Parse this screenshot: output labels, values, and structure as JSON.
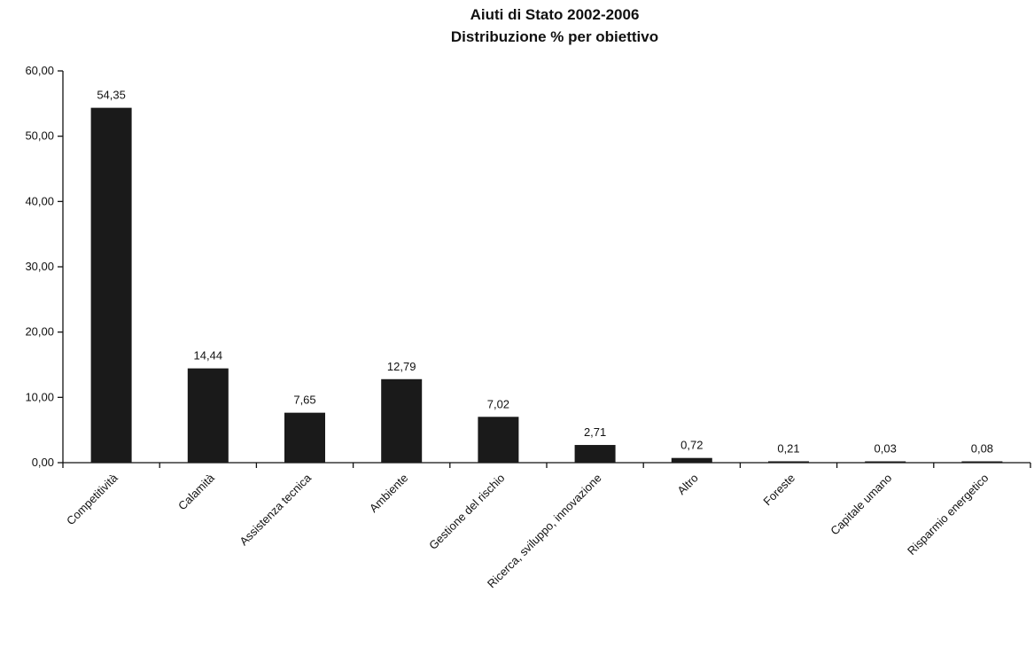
{
  "chart_data": {
    "type": "bar",
    "title": "Aiuti di Stato 2002-2006",
    "subtitle": "Distribuzione % per obiettivo",
    "xlabel": "",
    "ylabel": "",
    "categories": [
      "Competitività",
      "Calamità",
      "Assistenza tecnica",
      "Ambiente",
      "Gestione del rischio",
      "Ricerca, sviluppo, innovazione",
      "Altro",
      "Foreste",
      "Capitale umano",
      "Risparmio energetico"
    ],
    "values": [
      54.35,
      14.44,
      7.65,
      12.79,
      7.02,
      2.71,
      0.72,
      0.21,
      0.03,
      0.08
    ],
    "value_labels": [
      "54,35",
      "14,44",
      "7,65",
      "12,79",
      "7,02",
      "2,71",
      "0,72",
      "0,21",
      "0,03",
      "0,08"
    ],
    "ylim": [
      0,
      60
    ],
    "yticks": [
      0,
      10,
      20,
      30,
      40,
      50,
      60
    ],
    "ytick_labels": [
      "0,00",
      "10,00",
      "20,00",
      "30,00",
      "40,00",
      "50,00",
      "60,00"
    ],
    "grid": false,
    "legend": "none",
    "bar_color": "#1a1a1a"
  }
}
